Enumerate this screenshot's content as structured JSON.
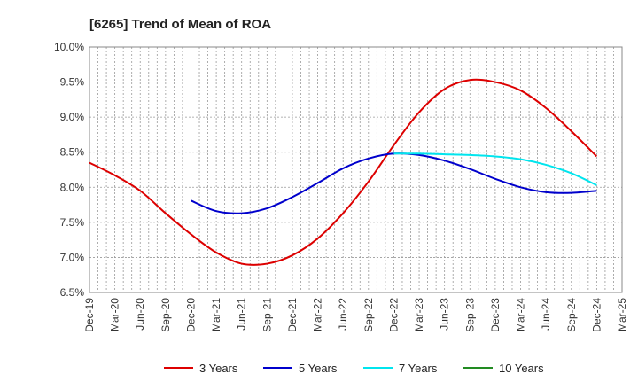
{
  "chart_data": {
    "type": "line",
    "title": "[6265]  Trend of Mean of ROA",
    "xlabel": "",
    "ylabel": "",
    "ylim": [
      6.5,
      10.0
    ],
    "yticks": [
      "6.5%",
      "7.0%",
      "7.5%",
      "8.0%",
      "8.5%",
      "9.0%",
      "9.5%",
      "10.0%"
    ],
    "ytick_values": [
      6.5,
      7.0,
      7.5,
      8.0,
      8.5,
      9.0,
      9.5,
      10.0
    ],
    "x_ticks": [
      "Dec-19",
      "Mar-20",
      "Jun-20",
      "Sep-20",
      "Dec-20",
      "Mar-21",
      "Jun-21",
      "Sep-21",
      "Dec-21",
      "Mar-22",
      "Jun-22",
      "Sep-22",
      "Dec-22",
      "Mar-23",
      "Jun-23",
      "Sep-23",
      "Dec-23",
      "Mar-24",
      "Jun-24",
      "Sep-24",
      "Dec-24",
      "Mar-25"
    ],
    "x": [
      "Dec-19",
      "Mar-20",
      "Jun-20",
      "Sep-20",
      "Dec-20",
      "Mar-21",
      "Jun-21",
      "Sep-21",
      "Dec-21",
      "Mar-22",
      "Jun-22",
      "Sep-22",
      "Dec-22",
      "Mar-23",
      "Jun-23",
      "Sep-23",
      "Dec-23",
      "Mar-24",
      "Jun-24",
      "Sep-24",
      "Dec-24"
    ],
    "grid": true,
    "legend_position": "bottom",
    "series": [
      {
        "name": "3 Years",
        "color": "#dd0000",
        "values": [
          8.35,
          8.17,
          7.95,
          7.63,
          7.33,
          7.07,
          6.91,
          6.91,
          7.03,
          7.27,
          7.63,
          8.08,
          8.6,
          9.07,
          9.4,
          9.53,
          9.5,
          9.38,
          9.13,
          8.8,
          8.44
        ]
      },
      {
        "name": "5 Years",
        "color": "#0000cc",
        "values": [
          null,
          null,
          null,
          null,
          7.81,
          7.66,
          7.63,
          7.7,
          7.86,
          8.06,
          8.27,
          8.41,
          8.48,
          8.46,
          8.38,
          8.26,
          8.12,
          8.0,
          7.93,
          7.92,
          7.95
        ]
      },
      {
        "name": "7 Years",
        "color": "#00e5ee",
        "values": [
          null,
          null,
          null,
          null,
          null,
          null,
          null,
          null,
          null,
          null,
          null,
          null,
          8.48,
          8.48,
          8.47,
          8.46,
          8.44,
          8.4,
          8.32,
          8.2,
          8.03
        ]
      },
      {
        "name": "10 Years",
        "color": "#228b22",
        "values": [
          null,
          null,
          null,
          null,
          null,
          null,
          null,
          null,
          null,
          null,
          null,
          null,
          null,
          null,
          null,
          null,
          null,
          null,
          null,
          null,
          null
        ]
      }
    ]
  }
}
